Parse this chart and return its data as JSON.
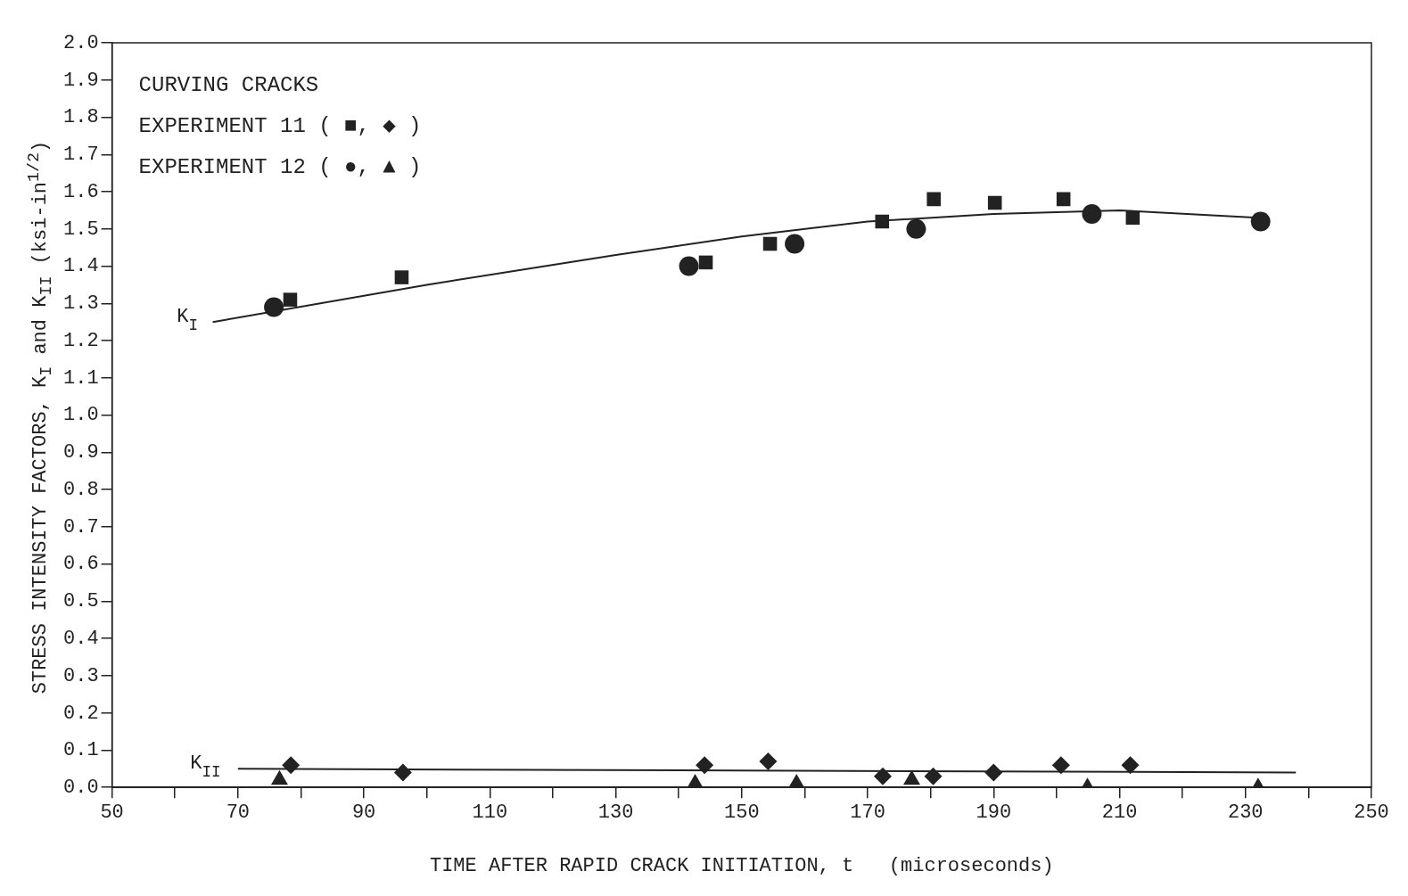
{
  "chart_data": {
    "type": "scatter",
    "xlabel": "TIME AFTER RAPID CRACK INITIATION, t   (microseconds)",
    "ylabel": "STRESS INTENSITY FACTORS, K$_{I}$ and K$_{II}$   (ksi-in$^{1/2}$)",
    "xlim": [
      50,
      250
    ],
    "ylim": [
      0,
      2
    ],
    "xticks": [
      50,
      {
        "value": 60,
        "label": null
      },
      70,
      {
        "value": 80,
        "label": null
      },
      90,
      {
        "value": 100,
        "label": null
      },
      110,
      {
        "value": 120,
        "label": null
      },
      130,
      {
        "value": 140,
        "label": null
      },
      150,
      {
        "value": 160,
        "label": null
      },
      170,
      {
        "value": 180,
        "label": null
      },
      190,
      {
        "value": 200,
        "label": null
      },
      210,
      {
        "value": 220,
        "label": null
      },
      230,
      {
        "value": 240,
        "label": null
      },
      250
    ],
    "yticks": [
      {
        "value": 0,
        "label": "0.0"
      },
      0.1,
      0.2,
      0.3,
      0.4,
      0.5,
      0.6,
      0.7,
      0.8,
      0.9,
      {
        "value": 1,
        "label": "1.0"
      },
      1.1,
      1.2,
      1.3,
      1.4,
      1.5,
      1.6,
      1.7,
      1.8,
      1.9,
      {
        "value": 2,
        "label": "2.0"
      }
    ],
    "grid": false,
    "legend": false,
    "series": [
      {
        "type": "line",
        "color": "#222222",
        "marker": "none",
        "line_style": "solid",
        "x": [
          66,
          100,
          130,
          150,
          170,
          190,
          210,
          232
        ],
        "values": [
          1.25,
          1.35,
          1.43,
          1.48,
          1.52,
          1.54,
          1.55,
          1.53
        ]
      },
      {
        "type": "line",
        "color": "#222222",
        "marker": "none",
        "line_style": "solid",
        "x": [
          70,
          238
        ],
        "values": [
          0.05,
          0.04
        ]
      },
      {
        "color": "#222222",
        "marker": "square",
        "x": [
          78.3,
          96,
          144.3,
          154.5,
          172.3,
          180.5,
          190.2,
          201.1,
          212.1
        ],
        "values": [
          1.31,
          1.37,
          1.41,
          1.46,
          1.52,
          1.58,
          1.57,
          1.58,
          1.53
        ]
      },
      {
        "color": "#222222",
        "marker": "circle",
        "x": [
          75.7,
          141.6,
          158.4,
          177.7,
          205.6,
          232.4
        ],
        "values": [
          1.29,
          1.4,
          1.46,
          1.5,
          1.54,
          1.52
        ]
      },
      {
        "color": "#222222",
        "marker": "diamond",
        "x": [
          78.4,
          96.2,
          144.1,
          154.2,
          172.4,
          180.4,
          190,
          200.7,
          211.7
        ],
        "values": [
          0.06,
          0.04,
          0.06,
          0.07,
          0.03,
          0.03,
          0.04,
          0.06,
          0.06
        ]
      },
      {
        "color": "#222222",
        "marker": "triangle",
        "x": [
          76.6,
          142.6,
          158.7,
          177,
          204.9,
          232
        ],
        "values": [
          0.02,
          0.01,
          0.01,
          0.02,
          0,
          0
        ]
      }
    ],
    "annotations": [
      "CURVING CRACKS",
      "EXPERIMENT 11 ( ■, ◆ )",
      "EXPERIMENT 12 ( ●, ▲ )",
      {
        "text": "K$_{I}$",
        "x": 66,
        "y": 1.25
      },
      {
        "text": "K$_{II}$",
        "x": 70,
        "y": 0.05
      }
    ]
  }
}
